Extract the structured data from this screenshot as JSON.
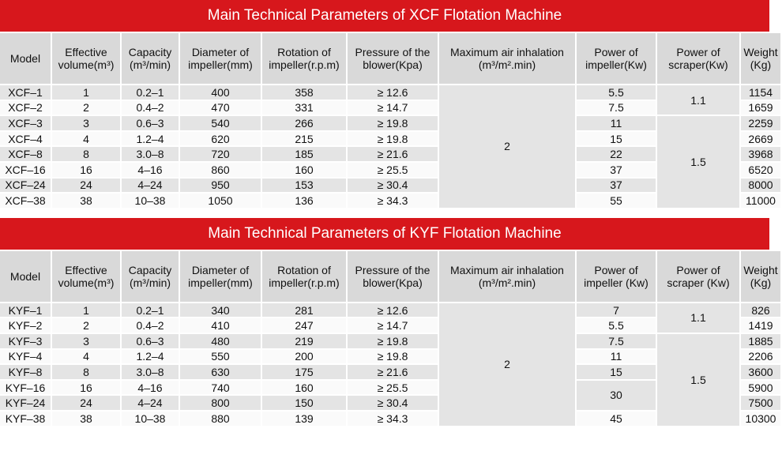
{
  "tables": [
    {
      "title": "Main Technical Parameters of XCF Flotation Machine",
      "headers": {
        "model": "Model",
        "volume": "Effective volume(m³)",
        "capacity": "Capacity (m³/min)",
        "diameter": "Diameter of impeller(mm)",
        "rotation": "Rotation of impeller(r.p.m)",
        "pressure": "Pressure of the blower(Kpa)",
        "air": "Maximum air inhalation (m³/m².min)",
        "power_imp": "Power of impeller(Kw)",
        "power_scr": "Power of scraper(Kw)",
        "weight": "Weight (Kg)"
      },
      "air_value": "2",
      "scraper_values": [
        "1.1",
        "1.5"
      ],
      "rows": [
        {
          "model": "XCF–1",
          "volume": "1",
          "capacity": "0.2–1",
          "diameter": "400",
          "rotation": "358",
          "pressure": "≥ 12.6",
          "power": "5.5",
          "weight": "1154"
        },
        {
          "model": "XCF–2",
          "volume": "2",
          "capacity": "0.4–2",
          "diameter": "470",
          "rotation": "331",
          "pressure": "≥ 14.7",
          "power": "7.5",
          "weight": "1659"
        },
        {
          "model": "XCF–3",
          "volume": "3",
          "capacity": "0.6–3",
          "diameter": "540",
          "rotation": "266",
          "pressure": "≥ 19.8",
          "power": "11",
          "weight": "2259"
        },
        {
          "model": "XCF–4",
          "volume": "4",
          "capacity": "1.2–4",
          "diameter": "620",
          "rotation": "215",
          "pressure": "≥ 19.8",
          "power": "15",
          "weight": "2669"
        },
        {
          "model": "XCF–8",
          "volume": "8",
          "capacity": "3.0–8",
          "diameter": "720",
          "rotation": "185",
          "pressure": "≥ 21.6",
          "power": "22",
          "weight": "3968"
        },
        {
          "model": "XCF–16",
          "volume": "16",
          "capacity": "4–16",
          "diameter": "860",
          "rotation": "160",
          "pressure": "≥ 25.5",
          "power": "37",
          "weight": "6520"
        },
        {
          "model": "XCF–24",
          "volume": "24",
          "capacity": "4–24",
          "diameter": "950",
          "rotation": "153",
          "pressure": "≥ 30.4",
          "power": "37",
          "weight": "8000"
        },
        {
          "model": "XCF–38",
          "volume": "38",
          "capacity": "10–38",
          "diameter": "1050",
          "rotation": "136",
          "pressure": "≥ 34.3",
          "power": "55",
          "weight": "11000"
        }
      ]
    },
    {
      "title": "Main Technical Parameters of KYF Flotation Machine",
      "headers": {
        "model": "Model",
        "volume": "Effective volume(m³)",
        "capacity": "Capacity (m³/min)",
        "diameter": "Diameter of impeller(mm)",
        "rotation": "Rotation of impeller(r.p.m)",
        "pressure": "Pressure of the blower(Kpa)",
        "air": "Maximum air inhalation (m³/m².min)",
        "power_imp": "Power of impeller (Kw)",
        "power_scr": "Power of scraper (Kw)",
        "weight": "Weight (Kg)"
      },
      "air_value": "2",
      "scraper_values": [
        "1.1",
        "1.5"
      ],
      "power_merged": "30",
      "rows": [
        {
          "model": "KYF–1",
          "volume": "1",
          "capacity": "0.2–1",
          "diameter": "340",
          "rotation": "281",
          "pressure": "≥ 12.6",
          "power": "7",
          "weight": "826"
        },
        {
          "model": "KYF–2",
          "volume": "2",
          "capacity": "0.4–2",
          "diameter": "410",
          "rotation": "247",
          "pressure": "≥ 14.7",
          "power": "5.5",
          "weight": "1419"
        },
        {
          "model": "KYF–3",
          "volume": "3",
          "capacity": "0.6–3",
          "diameter": "480",
          "rotation": "219",
          "pressure": "≥ 19.8",
          "power": "7.5",
          "weight": "1885"
        },
        {
          "model": "KYF–4",
          "volume": "4",
          "capacity": "1.2–4",
          "diameter": "550",
          "rotation": "200",
          "pressure": "≥ 19.8",
          "power": "11",
          "weight": "2206"
        },
        {
          "model": "KYF–8",
          "volume": "8",
          "capacity": "3.0–8",
          "diameter": "630",
          "rotation": "175",
          "pressure": "≥ 21.6",
          "power": "15",
          "weight": "3600"
        },
        {
          "model": "KYF–16",
          "volume": "16",
          "capacity": "4–16",
          "diameter": "740",
          "rotation": "160",
          "pressure": "≥ 25.5",
          "power": "",
          "weight": "5900"
        },
        {
          "model": "KYF–24",
          "volume": "24",
          "capacity": "4–24",
          "diameter": "800",
          "rotation": "150",
          "pressure": "≥ 30.4",
          "power": "",
          "weight": "7500"
        },
        {
          "model": "KYF–38",
          "volume": "38",
          "capacity": "10–38",
          "diameter": "880",
          "rotation": "139",
          "pressure": "≥ 34.3",
          "power": "45",
          "weight": "10300"
        }
      ]
    }
  ]
}
